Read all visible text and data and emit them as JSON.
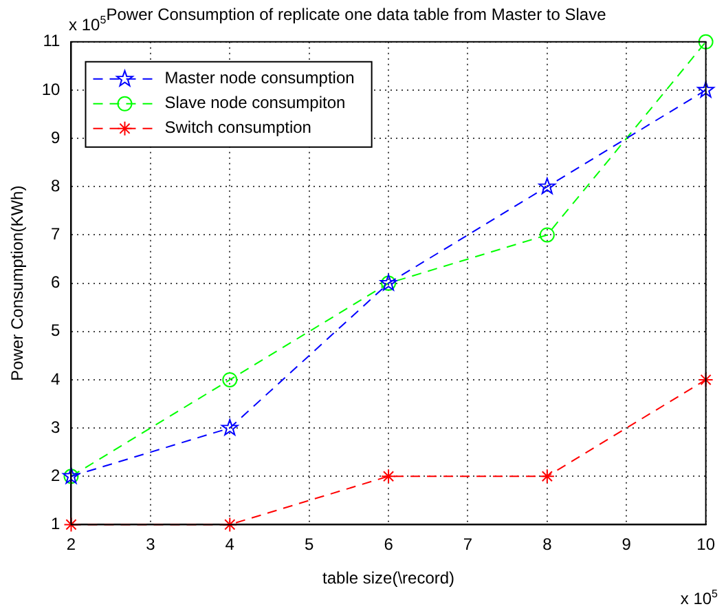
{
  "chart_data": {
    "type": "line",
    "title": "Power Consumption of replicate one data table from Master to Slave",
    "xlabel": "table size(\\record)",
    "ylabel": "Power Consumption(KWh)",
    "annotations": [
      "x 10$^{5}$",
      "x 10$^{5}$"
    ],
    "x": [
      2,
      4,
      6,
      8,
      10
    ],
    "series": [
      {
        "name": "Master node consumption",
        "color": "#0000ff",
        "values": [
          2,
          3,
          6,
          8,
          10
        ],
        "marker": "star",
        "line_style": "dashed"
      },
      {
        "name": "Slave node consumpiton",
        "color": "#00ff00",
        "values": [
          2,
          4,
          6,
          7,
          11
        ],
        "marker": "circle",
        "line_style": "dashed"
      },
      {
        "name": "Switch consumption",
        "color": "#ff0000",
        "values": [
          1,
          1,
          2,
          2,
          4
        ],
        "marker": "cross",
        "line_style": "dashed"
      }
    ],
    "xlim": [
      2,
      10
    ],
    "xticks": [
      2,
      3,
      4,
      5,
      6,
      7,
      8,
      9,
      10
    ],
    "ylim": [
      1,
      11
    ],
    "yticks": [
      1,
      2,
      3,
      4,
      5,
      6,
      7,
      8,
      9,
      10,
      11
    ],
    "grid": true,
    "legend": "top left"
  }
}
